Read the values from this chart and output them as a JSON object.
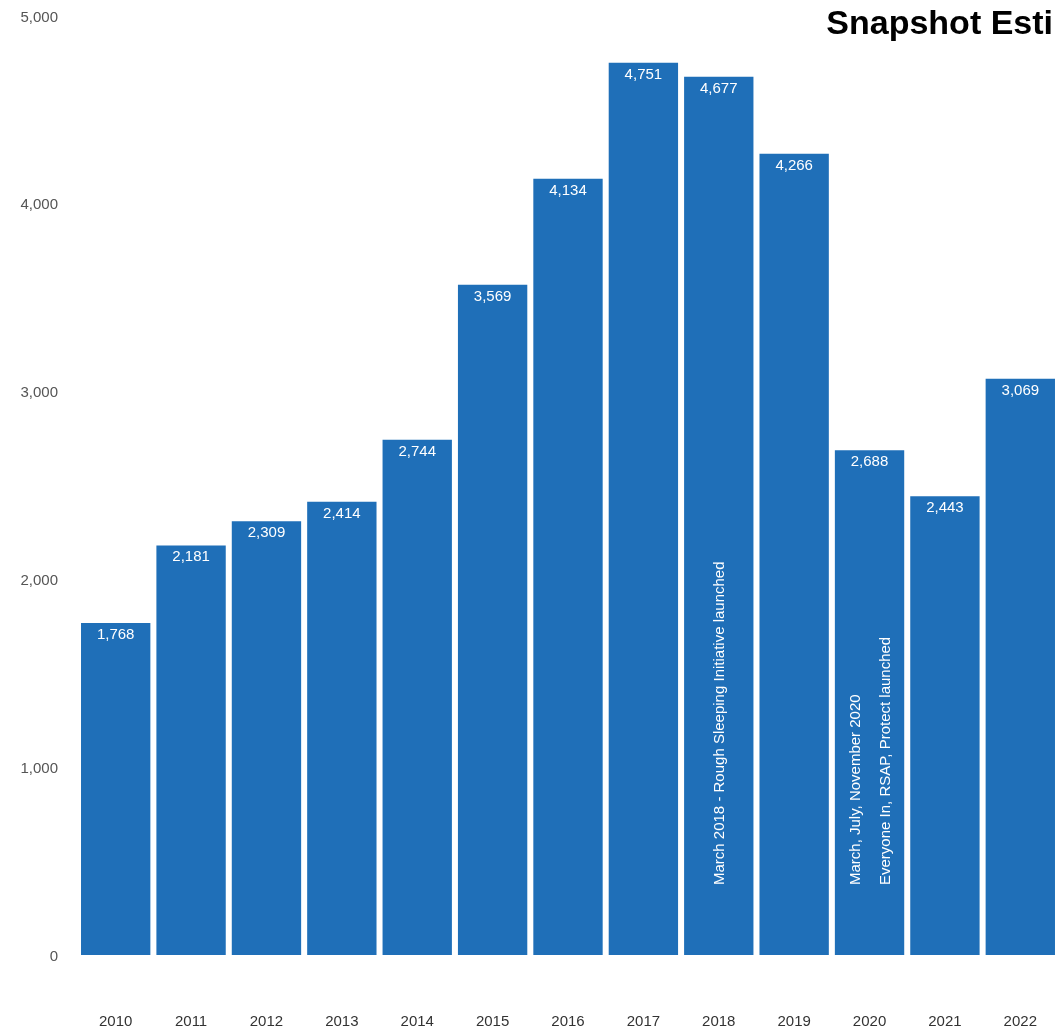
{
  "chart_data": {
    "type": "bar",
    "title": "Snapshot Esti",
    "categories": [
      "2010",
      "2011",
      "2012",
      "2013",
      "2014",
      "2015",
      "2016",
      "2017",
      "2018",
      "2019",
      "2020",
      "2021",
      "2022"
    ],
    "values": [
      1768,
      2181,
      2309,
      2414,
      2744,
      3569,
      4134,
      4751,
      4677,
      4266,
      2688,
      2443,
      3069
    ],
    "color": "#1f6fb8",
    "ylim": [
      0,
      5000
    ],
    "yticks": [
      {
        "value": 0,
        "label": "0"
      },
      {
        "value": 1000,
        "label": "1,000"
      },
      {
        "value": 2000,
        "label": "2,000"
      },
      {
        "value": 3000,
        "label": "3,000"
      },
      {
        "value": 4000,
        "label": "4,000"
      },
      {
        "value": 5000,
        "label": "5,000"
      }
    ],
    "value_labels": [
      "1,768",
      "2,181",
      "2,309",
      "2,414",
      "2,744",
      "3,569",
      "4,134",
      "4,751",
      "4,677",
      "4,266",
      "2,688",
      "2,443",
      "3,069"
    ],
    "grid": false,
    "annotations": [
      "March 2018 - Rough Sleeping Initiative launched",
      "March, July, November 2020\nEveryone In, RSAP, Protect launched"
    ]
  }
}
